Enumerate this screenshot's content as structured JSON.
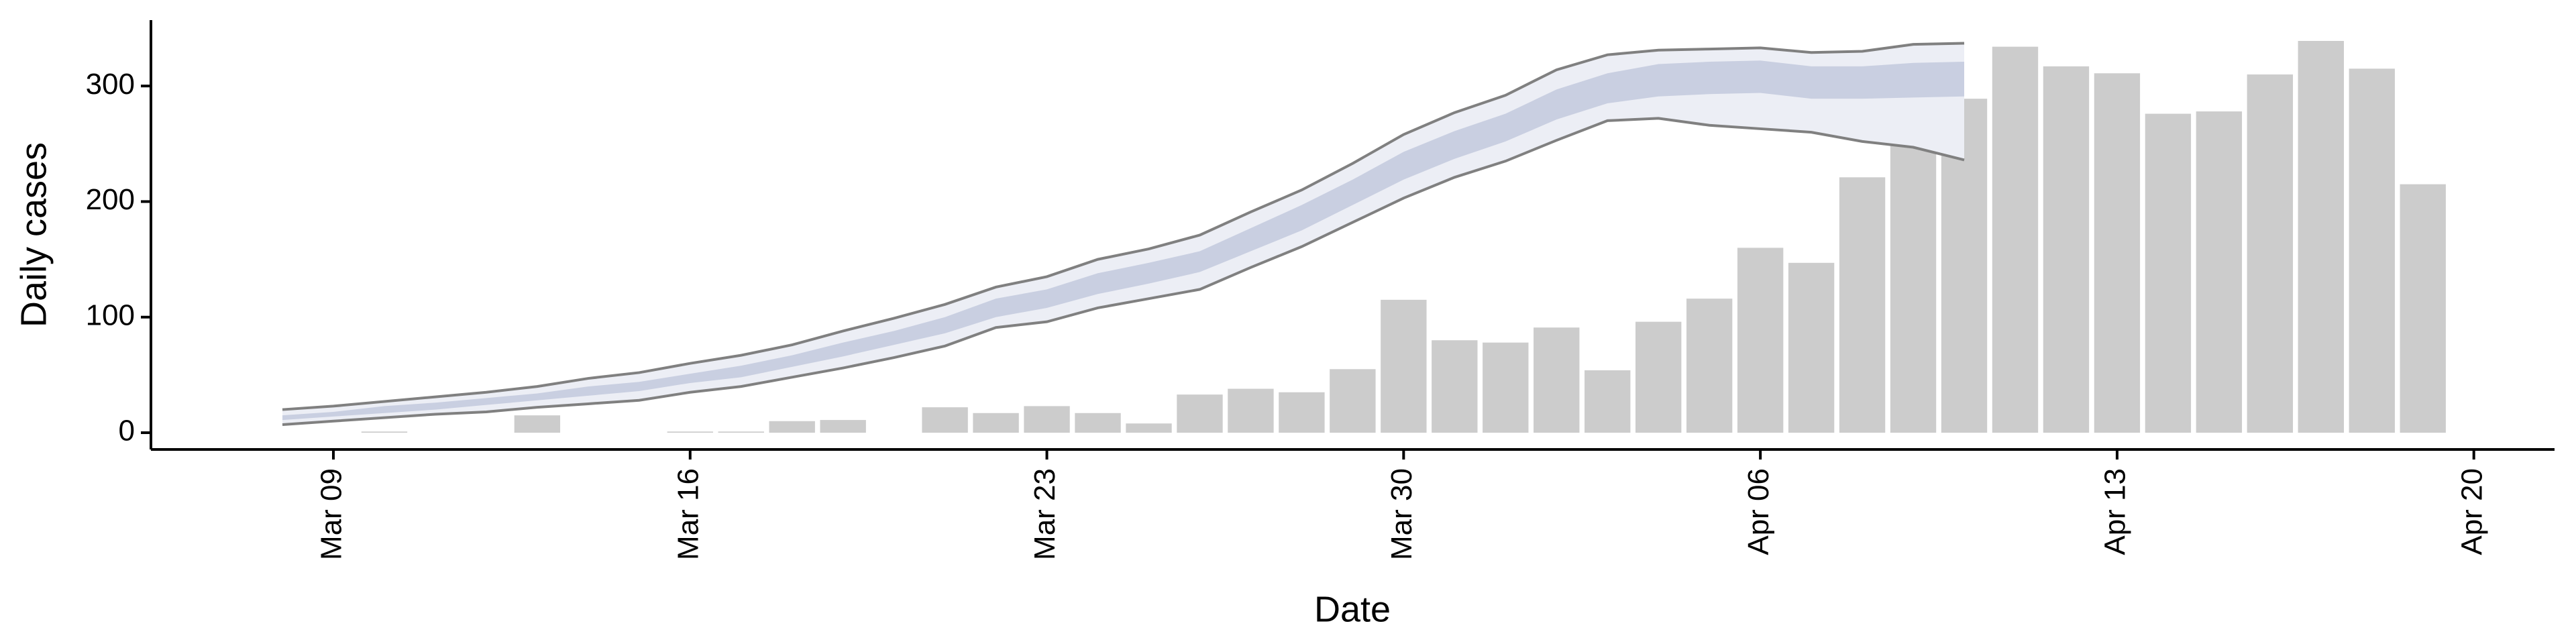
{
  "chart_data": {
    "type": "bar-ribbon",
    "x_label": "Date",
    "y_label": "Daily cases",
    "categories": [
      "Mar 08",
      "Mar 09",
      "Mar 10",
      "Mar 11",
      "Mar 12",
      "Mar 13",
      "Mar 14",
      "Mar 15",
      "Mar 16",
      "Mar 17",
      "Mar 18",
      "Mar 19",
      "Mar 20",
      "Mar 21",
      "Mar 22",
      "Mar 23",
      "Mar 24",
      "Mar 25",
      "Mar 26",
      "Mar 27",
      "Mar 28",
      "Mar 29",
      "Mar 30",
      "Mar 31",
      "Apr 01",
      "Apr 02",
      "Apr 03",
      "Apr 04",
      "Apr 05",
      "Apr 06",
      "Apr 07",
      "Apr 08",
      "Apr 09",
      "Apr 10",
      "Apr 11",
      "Apr 12",
      "Apr 13",
      "Apr 14",
      "Apr 15",
      "Apr 16",
      "Apr 17",
      "Apr 18",
      "Apr 19",
      "Apr 20"
    ],
    "xticks": [
      "Mar 09",
      "Mar 16",
      "Mar 23",
      "Mar 30",
      "Apr 06",
      "Apr 13",
      "Apr 20"
    ],
    "ylim": [
      -14.5,
      357
    ],
    "yticks": [
      0,
      100,
      200,
      300
    ],
    "bars": {
      "color": "#cccccc",
      "values": [
        null,
        null,
        1,
        null,
        null,
        15,
        null,
        null,
        1,
        1,
        10,
        11,
        null,
        22,
        17,
        23,
        17,
        8,
        33,
        38,
        35,
        55,
        115,
        80,
        78,
        91,
        54,
        96,
        116,
        160,
        147,
        221,
        277,
        289,
        334,
        317,
        311,
        276,
        278,
        310,
        339,
        315,
        215,
        null
      ]
    },
    "ribbon": {
      "fill": "#eceef5",
      "inner_fill": "#c9cfe1",
      "line_color": "#808080",
      "upper": [
        20,
        23,
        27,
        31,
        35,
        40,
        47,
        52,
        60,
        67,
        76,
        88,
        99,
        111,
        126,
        135,
        150,
        159,
        171,
        191,
        210,
        233,
        258,
        277,
        292,
        314,
        327,
        331,
        332,
        333,
        329,
        330,
        336,
        337,
        null,
        null,
        null,
        null,
        null,
        null,
        null,
        null,
        null,
        null
      ],
      "lower": [
        7,
        10,
        13,
        16,
        18,
        22,
        25,
        28,
        35,
        40,
        48,
        56,
        65,
        75,
        91,
        96,
        108,
        116,
        124,
        143,
        161,
        182,
        203,
        221,
        235,
        253,
        270,
        272,
        266,
        263,
        260,
        252,
        247,
        236,
        null,
        null,
        null,
        null,
        null,
        null,
        null,
        null,
        null,
        null
      ],
      "inner_upper": [
        15,
        18,
        23,
        26,
        30,
        34,
        40,
        44,
        51,
        58,
        67,
        78,
        88,
        100,
        116,
        124,
        138,
        147,
        157,
        177,
        197,
        219,
        243,
        261,
        276,
        297,
        311,
        319,
        321,
        322,
        317,
        317,
        320,
        321,
        null,
        null,
        null,
        null,
        null,
        null,
        null,
        null,
        null,
        null
      ],
      "inner_lower": [
        11,
        14,
        17,
        20,
        24,
        28,
        32,
        36,
        43,
        48,
        57,
        66,
        76,
        86,
        100,
        108,
        120,
        129,
        139,
        157,
        175,
        197,
        219,
        237,
        252,
        271,
        285,
        291,
        293,
        294,
        289,
        289,
        290,
        291,
        null,
        null,
        null,
        null,
        null,
        null,
        null,
        null,
        null,
        null
      ]
    }
  }
}
